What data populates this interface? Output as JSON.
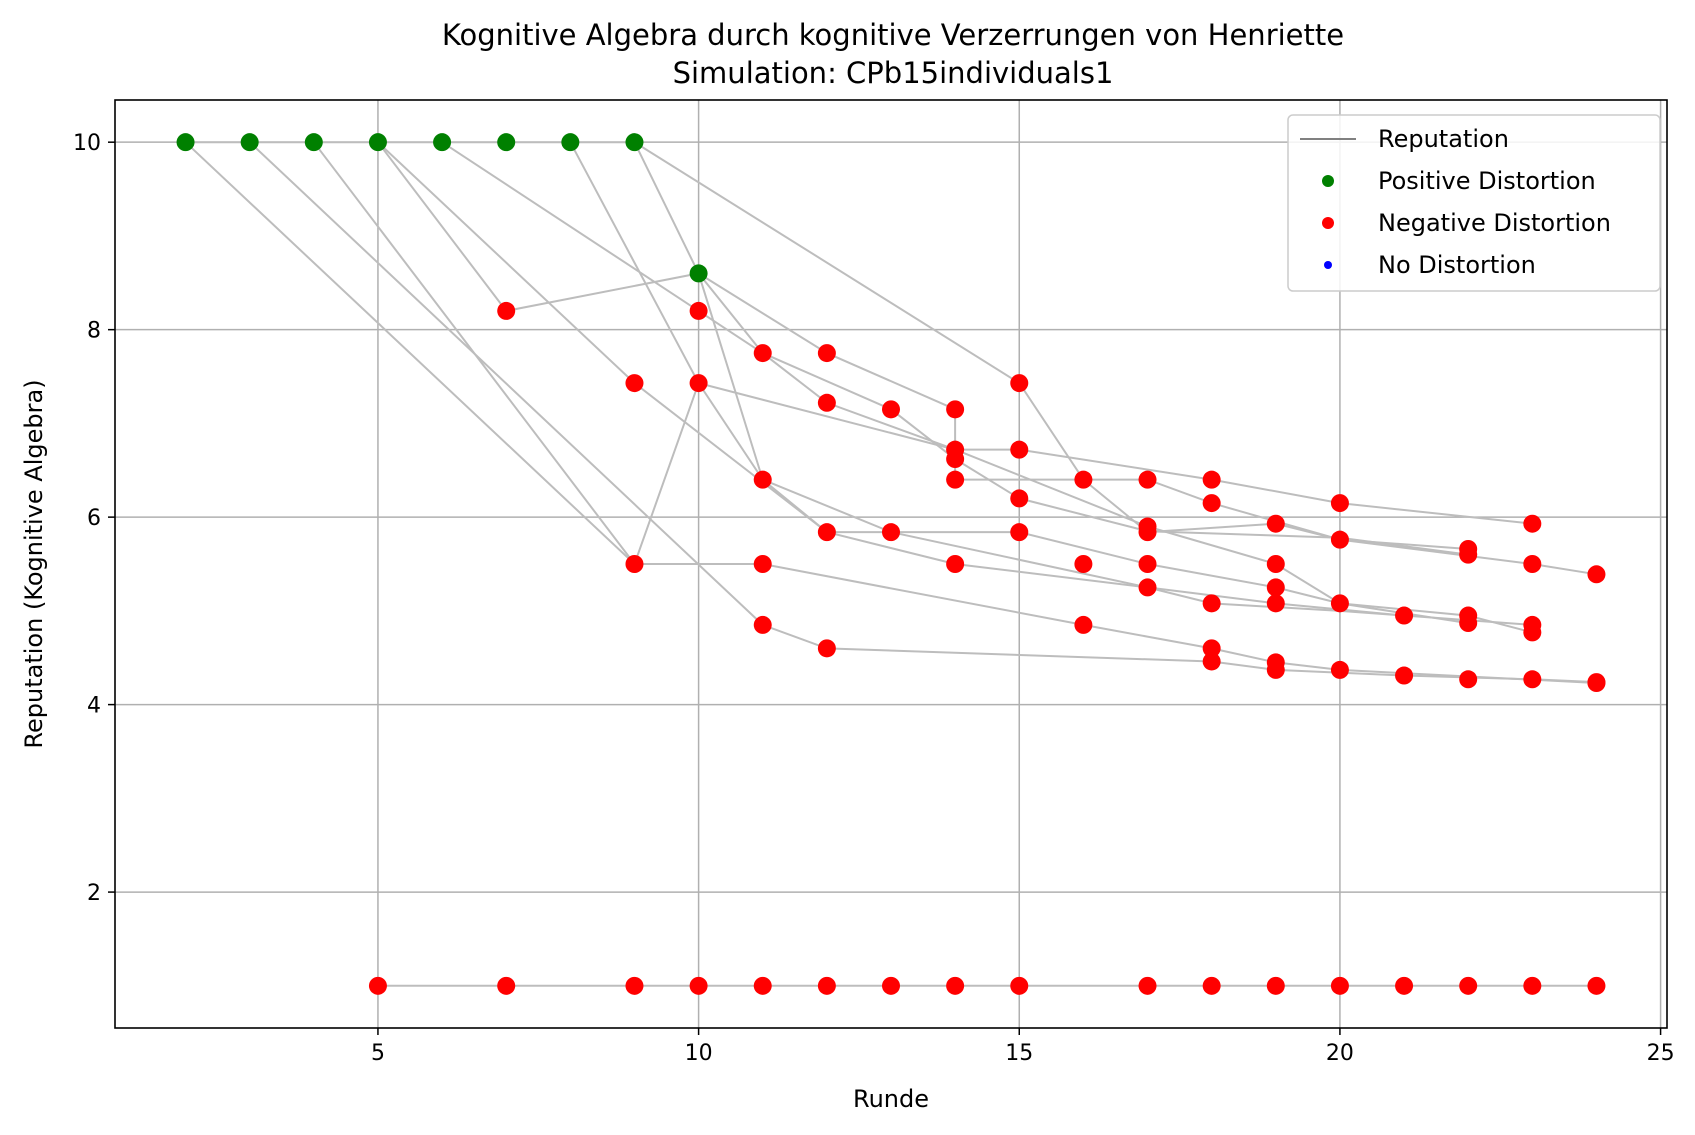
{
  "chart_data": {
    "type": "scatter",
    "title": "Kognitive Algebra durch kognitive Verzerrungen von Henriette",
    "subtitle": "Simulation: CPb15individuals1",
    "xlabel": "Runde",
    "ylabel": "Reputation (Kognitive Algebra)",
    "xlim": [
      0.9,
      25.1
    ],
    "ylim": [
      0.55,
      10.45
    ],
    "xticks": [
      5,
      10,
      15,
      20,
      25
    ],
    "yticks": [
      2,
      4,
      6,
      8,
      10
    ],
    "grid": true,
    "legend_position": "top-right",
    "legend": [
      {
        "label": "Reputation",
        "kind": "line",
        "color": "#808080"
      },
      {
        "label": "Positive Distortion",
        "kind": "marker",
        "color": "#008000"
      },
      {
        "label": "Negative Distortion",
        "kind": "marker",
        "color": "#ff0000"
      },
      {
        "label": "No Distortion",
        "kind": "marker",
        "color": "#0000ff"
      }
    ],
    "line_color": "#bdbdbd",
    "lines": [
      {
        "points": [
          [
            5,
            1
          ],
          [
            7,
            1
          ],
          [
            9,
            1
          ],
          [
            10,
            1
          ],
          [
            11,
            1
          ],
          [
            12,
            1
          ],
          [
            13,
            1
          ],
          [
            14,
            1
          ],
          [
            15,
            1
          ],
          [
            17,
            1
          ],
          [
            18,
            1
          ],
          [
            19,
            1
          ],
          [
            20,
            1
          ],
          [
            21,
            1
          ],
          [
            22,
            1
          ],
          [
            23,
            1
          ],
          [
            24,
            1
          ]
        ]
      },
      {
        "points": [
          [
            2,
            10
          ],
          [
            3,
            10
          ],
          [
            4,
            10
          ],
          [
            5,
            10
          ],
          [
            6,
            10
          ],
          [
            7,
            10
          ],
          [
            8,
            10
          ],
          [
            9,
            10
          ]
        ]
      },
      {
        "points": [
          [
            2,
            10
          ],
          [
            9,
            5.5
          ],
          [
            10,
            7.43
          ],
          [
            11,
            6.4
          ],
          [
            13,
            5.84
          ],
          [
            17,
            5.25
          ],
          [
            19,
            5.08
          ],
          [
            21,
            4.95
          ]
        ]
      },
      {
        "points": [
          [
            3,
            10
          ],
          [
            11,
            4.85
          ],
          [
            12,
            4.6
          ],
          [
            18,
            4.46
          ],
          [
            19,
            4.37
          ],
          [
            21,
            4.31
          ],
          [
            23,
            4.27
          ],
          [
            24,
            4.24
          ]
        ]
      },
      {
        "points": [
          [
            4,
            10
          ],
          [
            9,
            5.5
          ],
          [
            11,
            5.5
          ],
          [
            16,
            4.85
          ],
          [
            18,
            4.6
          ],
          [
            19,
            4.45
          ],
          [
            20,
            4.37
          ],
          [
            24,
            4.23
          ]
        ]
      },
      {
        "points": [
          [
            5,
            10
          ],
          [
            9,
            7.43
          ],
          [
            12,
            5.84
          ],
          [
            14,
            5.5
          ],
          [
            17,
            5.25
          ],
          [
            18,
            5.08
          ],
          [
            20,
            5.0
          ],
          [
            23,
            4.85
          ]
        ]
      },
      {
        "points": [
          [
            5,
            10
          ],
          [
            7,
            8.2
          ],
          [
            10,
            8.6
          ],
          [
            11,
            7.75
          ],
          [
            12,
            7.22
          ],
          [
            14,
            6.72
          ],
          [
            17,
            5.9
          ],
          [
            19,
            5.5
          ],
          [
            20,
            5.08
          ],
          [
            22,
            4.95
          ],
          [
            23,
            4.77
          ]
        ]
      },
      {
        "points": [
          [
            6,
            10
          ],
          [
            10,
            8.2
          ],
          [
            11,
            7.75
          ],
          [
            13,
            7.15
          ],
          [
            14,
            6.62
          ],
          [
            15,
            6.2
          ],
          [
            17,
            5.85
          ],
          [
            20,
            5.78
          ],
          [
            22,
            5.6
          ]
        ]
      },
      {
        "points": [
          [
            8,
            10
          ],
          [
            10,
            7.43
          ],
          [
            14,
            6.72
          ],
          [
            15,
            6.72
          ],
          [
            18,
            6.4
          ],
          [
            20,
            6.15
          ],
          [
            23,
            5.93
          ]
        ]
      },
      {
        "points": [
          [
            9,
            10
          ],
          [
            10,
            8.6
          ],
          [
            11,
            6.4
          ],
          [
            12,
            5.84
          ],
          [
            15,
            5.84
          ],
          [
            17,
            5.5
          ],
          [
            19,
            5.25
          ],
          [
            20,
            5.08
          ],
          [
            22,
            4.87
          ]
        ]
      },
      {
        "points": [
          [
            9,
            10
          ],
          [
            15,
            7.43
          ],
          [
            16,
            6.4
          ],
          [
            17,
            5.84
          ],
          [
            19,
            5.93
          ],
          [
            20,
            5.76
          ],
          [
            22,
            5.66
          ]
        ]
      },
      {
        "points": [
          [
            10,
            8.6
          ],
          [
            12,
            7.75
          ],
          [
            14,
            7.15
          ],
          [
            14,
            6.4
          ],
          [
            16,
            6.4
          ],
          [
            17,
            6.4
          ],
          [
            18,
            6.15
          ],
          [
            20,
            5.76
          ],
          [
            23,
            5.5
          ],
          [
            24,
            5.39
          ]
        ]
      }
    ],
    "points": [
      {
        "x": 2,
        "y": 10,
        "type": "positive"
      },
      {
        "x": 3,
        "y": 10,
        "type": "positive"
      },
      {
        "x": 4,
        "y": 10,
        "type": "positive"
      },
      {
        "x": 5,
        "y": 10,
        "type": "positive"
      },
      {
        "x": 6,
        "y": 10,
        "type": "positive"
      },
      {
        "x": 7,
        "y": 10,
        "type": "positive"
      },
      {
        "x": 8,
        "y": 10,
        "type": "positive"
      },
      {
        "x": 9,
        "y": 10,
        "type": "positive"
      },
      {
        "x": 10,
        "y": 8.6,
        "type": "positive"
      },
      {
        "x": 7,
        "y": 8.2,
        "type": "negative"
      },
      {
        "x": 9,
        "y": 7.43,
        "type": "negative"
      },
      {
        "x": 9,
        "y": 5.5,
        "type": "negative"
      },
      {
        "x": 10,
        "y": 8.2,
        "type": "negative"
      },
      {
        "x": 10,
        "y": 7.43,
        "type": "negative"
      },
      {
        "x": 11,
        "y": 7.75,
        "type": "negative"
      },
      {
        "x": 11,
        "y": 6.4,
        "type": "negative"
      },
      {
        "x": 11,
        "y": 5.5,
        "type": "negative"
      },
      {
        "x": 11,
        "y": 4.85,
        "type": "negative"
      },
      {
        "x": 12,
        "y": 7.75,
        "type": "negative"
      },
      {
        "x": 12,
        "y": 7.22,
        "type": "negative"
      },
      {
        "x": 12,
        "y": 5.84,
        "type": "negative"
      },
      {
        "x": 12,
        "y": 4.6,
        "type": "negative"
      },
      {
        "x": 13,
        "y": 7.15,
        "type": "negative"
      },
      {
        "x": 13,
        "y": 5.84,
        "type": "negative"
      },
      {
        "x": 14,
        "y": 7.15,
        "type": "negative"
      },
      {
        "x": 14,
        "y": 6.72,
        "type": "negative"
      },
      {
        "x": 14,
        "y": 6.62,
        "type": "negative"
      },
      {
        "x": 14,
        "y": 6.4,
        "type": "negative"
      },
      {
        "x": 14,
        "y": 5.5,
        "type": "negative"
      },
      {
        "x": 15,
        "y": 7.43,
        "type": "negative"
      },
      {
        "x": 15,
        "y": 6.72,
        "type": "negative"
      },
      {
        "x": 15,
        "y": 6.2,
        "type": "negative"
      },
      {
        "x": 15,
        "y": 5.84,
        "type": "negative"
      },
      {
        "x": 16,
        "y": 6.4,
        "type": "negative"
      },
      {
        "x": 16,
        "y": 5.5,
        "type": "negative"
      },
      {
        "x": 16,
        "y": 4.85,
        "type": "negative"
      },
      {
        "x": 17,
        "y": 6.4,
        "type": "negative"
      },
      {
        "x": 17,
        "y": 5.9,
        "type": "negative"
      },
      {
        "x": 17,
        "y": 5.84,
        "type": "negative"
      },
      {
        "x": 17,
        "y": 5.5,
        "type": "negative"
      },
      {
        "x": 17,
        "y": 5.25,
        "type": "negative"
      },
      {
        "x": 18,
        "y": 6.4,
        "type": "negative"
      },
      {
        "x": 18,
        "y": 6.15,
        "type": "negative"
      },
      {
        "x": 18,
        "y": 5.08,
        "type": "negative"
      },
      {
        "x": 18,
        "y": 4.6,
        "type": "negative"
      },
      {
        "x": 18,
        "y": 4.46,
        "type": "negative"
      },
      {
        "x": 19,
        "y": 5.93,
        "type": "negative"
      },
      {
        "x": 19,
        "y": 5.5,
        "type": "negative"
      },
      {
        "x": 19,
        "y": 5.25,
        "type": "negative"
      },
      {
        "x": 19,
        "y": 5.08,
        "type": "negative"
      },
      {
        "x": 19,
        "y": 4.45,
        "type": "negative"
      },
      {
        "x": 19,
        "y": 4.37,
        "type": "negative"
      },
      {
        "x": 20,
        "y": 6.15,
        "type": "negative"
      },
      {
        "x": 20,
        "y": 5.76,
        "type": "negative"
      },
      {
        "x": 20,
        "y": 5.08,
        "type": "negative"
      },
      {
        "x": 20,
        "y": 4.37,
        "type": "negative"
      },
      {
        "x": 21,
        "y": 4.95,
        "type": "negative"
      },
      {
        "x": 21,
        "y": 4.31,
        "type": "negative"
      },
      {
        "x": 22,
        "y": 5.66,
        "type": "negative"
      },
      {
        "x": 22,
        "y": 5.6,
        "type": "negative"
      },
      {
        "x": 22,
        "y": 4.95,
        "type": "negative"
      },
      {
        "x": 22,
        "y": 4.87,
        "type": "negative"
      },
      {
        "x": 22,
        "y": 4.27,
        "type": "negative"
      },
      {
        "x": 23,
        "y": 5.93,
        "type": "negative"
      },
      {
        "x": 23,
        "y": 5.5,
        "type": "negative"
      },
      {
        "x": 23,
        "y": 4.85,
        "type": "negative"
      },
      {
        "x": 23,
        "y": 4.77,
        "type": "negative"
      },
      {
        "x": 23,
        "y": 4.27,
        "type": "negative"
      },
      {
        "x": 24,
        "y": 5.39,
        "type": "negative"
      },
      {
        "x": 24,
        "y": 4.24,
        "type": "negative"
      },
      {
        "x": 24,
        "y": 4.23,
        "type": "negative"
      },
      {
        "x": 5,
        "y": 1,
        "type": "negative"
      },
      {
        "x": 7,
        "y": 1,
        "type": "negative"
      },
      {
        "x": 9,
        "y": 1,
        "type": "negative"
      },
      {
        "x": 10,
        "y": 1,
        "type": "negative"
      },
      {
        "x": 11,
        "y": 1,
        "type": "negative"
      },
      {
        "x": 12,
        "y": 1,
        "type": "negative"
      },
      {
        "x": 13,
        "y": 1,
        "type": "negative"
      },
      {
        "x": 14,
        "y": 1,
        "type": "negative"
      },
      {
        "x": 15,
        "y": 1,
        "type": "negative"
      },
      {
        "x": 17,
        "y": 1,
        "type": "negative"
      },
      {
        "x": 18,
        "y": 1,
        "type": "negative"
      },
      {
        "x": 19,
        "y": 1,
        "type": "negative"
      },
      {
        "x": 20,
        "y": 1,
        "type": "negative"
      },
      {
        "x": 21,
        "y": 1,
        "type": "negative"
      },
      {
        "x": 22,
        "y": 1,
        "type": "negative"
      },
      {
        "x": 23,
        "y": 1,
        "type": "negative"
      },
      {
        "x": 24,
        "y": 1,
        "type": "negative"
      }
    ],
    "marker_colors": {
      "positive": "#008000",
      "negative": "#ff0000",
      "none": "#0000ff"
    }
  }
}
